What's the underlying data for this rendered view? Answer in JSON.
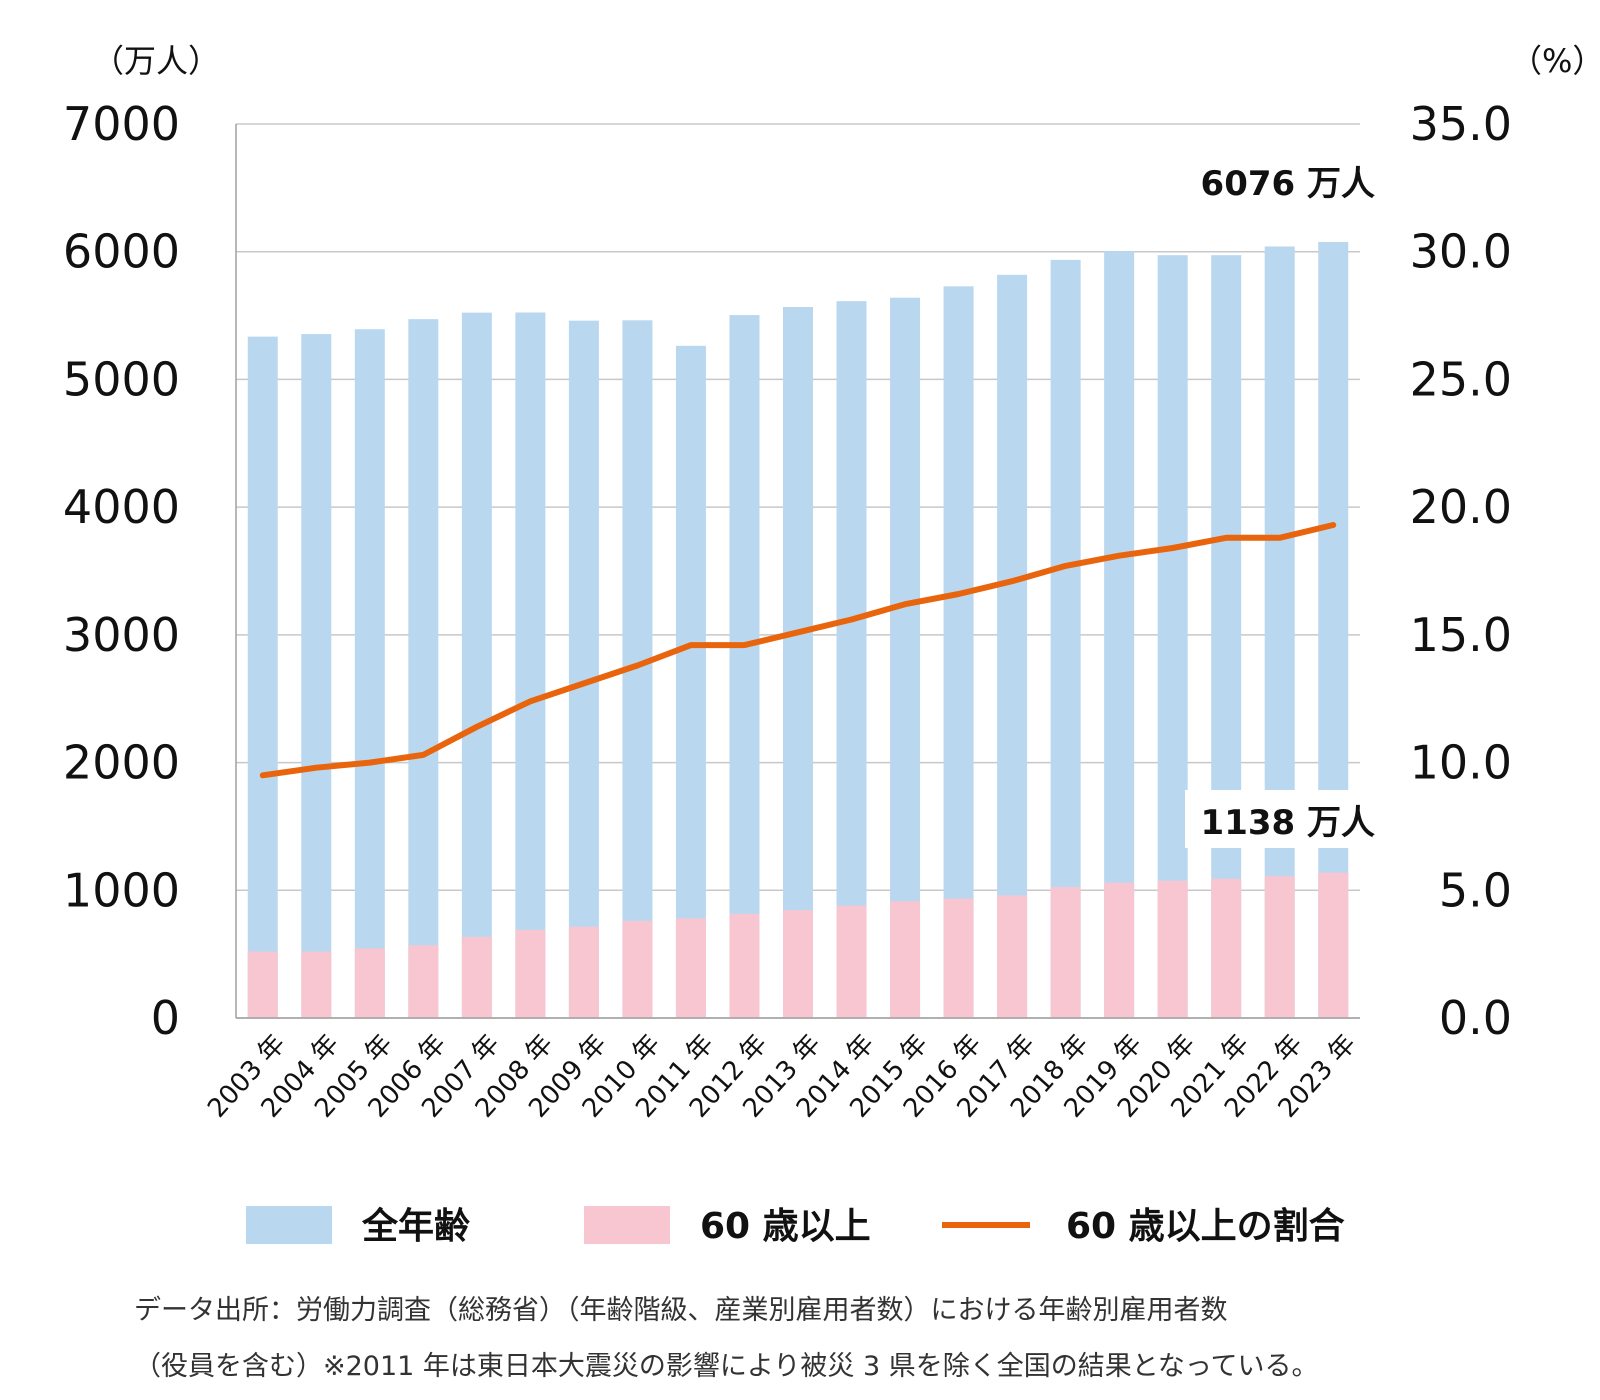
{
  "chart_data": {
    "type": "bar",
    "categories": [
      "2003 年",
      "2004 年",
      "2005 年",
      "2006 年",
      "2007 年",
      "2008 年",
      "2009 年",
      "2010 年",
      "2011 年",
      "2012 年",
      "2013 年",
      "2014 年",
      "2015 年",
      "2016 年",
      "2017 年",
      "2018 年",
      "2019 年",
      "2020 年",
      "2021 年",
      "2022 年",
      "2023 年"
    ],
    "series": [
      {
        "name": "全年齢",
        "color": "#bad7f0",
        "values": [
          5335,
          5355,
          5393,
          5472,
          5523,
          5524,
          5460,
          5463,
          5263,
          5504,
          5567,
          5613,
          5640,
          5729,
          5819,
          5936,
          6004,
          5973,
          5973,
          6041,
          6076
        ]
      },
      {
        "name": "60 歳以上",
        "color": "#f7c6d1",
        "values": [
          520,
          520,
          545,
          570,
          635,
          690,
          715,
          760,
          780,
          815,
          845,
          880,
          915,
          935,
          960,
          1025,
          1060,
          1075,
          1090,
          1110,
          1138
        ]
      },
      {
        "name": "60 歳以上の割合",
        "type": "line",
        "axis": "right",
        "color": "#e8650d",
        "values": [
          9.5,
          9.8,
          10.0,
          10.3,
          11.4,
          12.4,
          13.1,
          13.8,
          14.6,
          14.6,
          15.1,
          15.6,
          16.2,
          16.6,
          17.1,
          17.7,
          18.1,
          18.4,
          18.8,
          18.8,
          19.3
        ]
      }
    ],
    "yleft": {
      "unit": "（万人）",
      "ticks": [
        "7000",
        "6000",
        "5000",
        "4000",
        "3000",
        "2000",
        "1000",
        "0"
      ],
      "ylim": [
        0,
        7000
      ]
    },
    "yright": {
      "unit": "（%）",
      "ticks": [
        "35.0",
        "30.0",
        "25.0",
        "20.0",
        "15.0",
        "10.0",
        "5.0",
        "0.0"
      ],
      "ylim": [
        0,
        35
      ]
    },
    "annotations": [
      {
        "text": "6076 万人",
        "series": "全年齢",
        "category": "2023 年"
      },
      {
        "text": "1138 万人",
        "series": "60 歳以上",
        "category": "2023 年"
      }
    ],
    "legend": [
      "全年齢",
      "60 歳以上",
      "60 歳以上の割合"
    ],
    "grid": true
  },
  "source_note": {
    "line1": "データ出所：労働力調査（総務省）（年齢階級、産業別雇用者数）における年齢別雇用者数",
    "line2": "（役員を含む）※2011 年は東日本大震災の影響により被災 3 県を除く全国の結果となっている。"
  }
}
